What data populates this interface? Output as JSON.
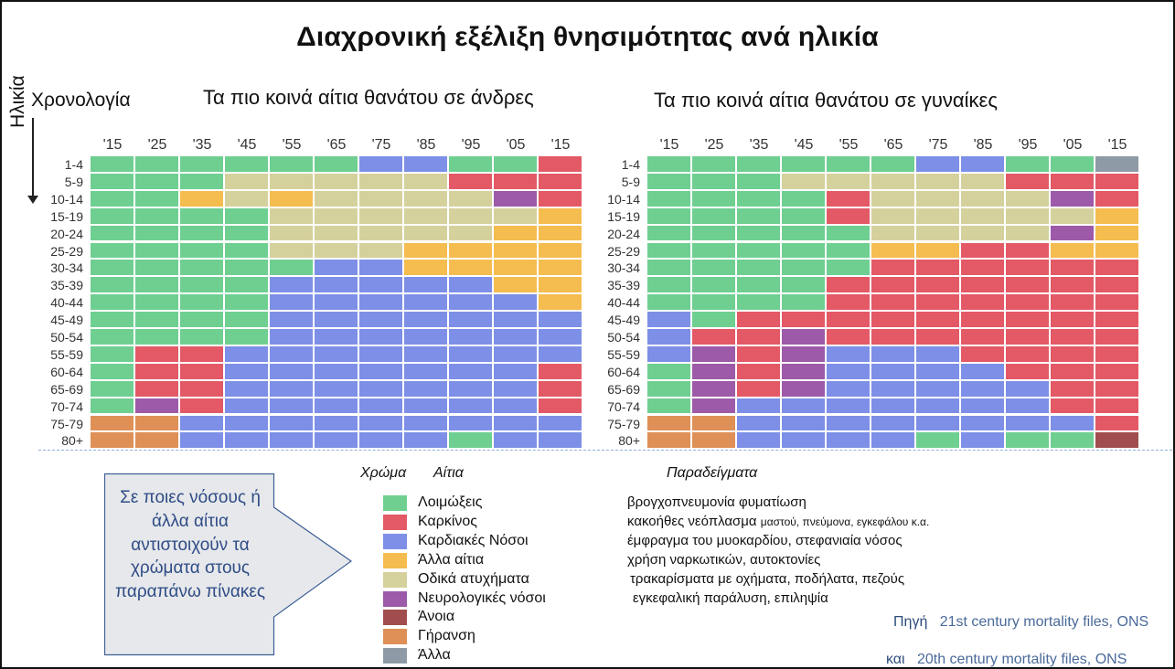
{
  "title": "Διαχρονική εξέλιξη θνησιμότητας ανά ηλικία",
  "axis": {
    "chronology": "Χρονολογία",
    "age": "Ηλικία"
  },
  "colors": {
    "L": "#6ecf91",
    "K": "#e35966",
    "H": "#7d8fe6",
    "A": "#f5bc4f",
    "O": "#d5d19c",
    "N": "#9d5aa8",
    "D": "#a24d4d",
    "G": "#df9057",
    "X": "#8e9ba6"
  },
  "chart_data": [
    {
      "type": "heatmap",
      "title": "Τα πιο κοινά αίτια θανάτου σε άνδρες",
      "xlabel": "Χρονολογία",
      "ylabel": "Ηλικία",
      "x": [
        "'15",
        "'25",
        "'35",
        "'45",
        "'55",
        "'65",
        "'75",
        "'85",
        "'95",
        "'05",
        "'15"
      ],
      "y": [
        "1-4",
        "5-9",
        "10-14",
        "15-19",
        "20-24",
        "25-29",
        "30-34",
        "35-39",
        "40-44",
        "45-49",
        "50-54",
        "55-59",
        "60-64",
        "65-69",
        "70-74",
        "75-79",
        "80+"
      ],
      "rows": [
        "LLLLLLHHLLK",
        "LLLOOOOOKKK",
        "LLAOAOOOONK",
        "LLLLOOOOOOA",
        "LLLLOOOOOAA",
        "LLLLOOOAAAA",
        "LLLLLHHAAAA",
        "LLLLHHHHHAA",
        "LLLLHHHHHHA",
        "LLLLHHHHHHH",
        "LLLLHHHHHHH",
        "LKKHHHHHHHH",
        "LKKHHHHHHHK",
        "LKKHHHHHHHK",
        "LNKHHHHHHHK",
        "GGHHHHHHHHH",
        "GGHHHHHHLHH"
      ]
    },
    {
      "type": "heatmap",
      "title": "Τα πιο κοινά αίτια θανάτου σε γυναίκες",
      "xlabel": "Χρονολογία",
      "ylabel": "Ηλικία",
      "x": [
        "'15",
        "'25",
        "'35",
        "'45",
        "'55",
        "'65",
        "'75",
        "'85",
        "'95",
        "'05",
        "'15"
      ],
      "y": [
        "1-4",
        "5-9",
        "10-14",
        "15-19",
        "20-24",
        "25-29",
        "30-34",
        "35-39",
        "40-44",
        "45-49",
        "50-54",
        "55-59",
        "60-64",
        "65-69",
        "70-74",
        "75-79",
        "80+"
      ],
      "rows": [
        "LLLLLLHHLLX",
        "LLLOOOOOKKK",
        "LLLLKOOOONK",
        "LLLLKOOOOOA",
        "LLLLLOOOONA",
        "LLLLLAAKKAA",
        "LLLLLKKKKKK",
        "LLLLKKKKKKK",
        "LLLLKKKKKKK",
        "HLKKKKKKKKK",
        "HKKNKKKKKKK",
        "HNKNHHHKKKK",
        "LNKNHHHHKKK",
        "LNKNHHHHHKK",
        "LNHHHHHHHKK",
        "GGHHHHHHHHK",
        "GGHHHHLHLLD"
      ]
    }
  ],
  "callout": "Σε ποιες νόσους ή άλλα αίτια αντιστοιχούν τα χρώματα στους παραπάνω πίνακες",
  "legend": {
    "head_color": "Χρώμα",
    "head_cause": "Αίτια",
    "head_examples": "Παραδείγματα",
    "items": [
      {
        "code": "L",
        "label": "Λοιμώξεις",
        "example": "βρογχοπνευμονία φυματίωση",
        "example_small": ""
      },
      {
        "code": "K",
        "label": "Καρκίνος",
        "example": "κακοήθες νεόπλασμα",
        "example_small": "μαστού, πνεύμονα, εγκεφάλου κ.α."
      },
      {
        "code": "H",
        "label": "Καρδιακές Νόσοι",
        "example": "έμφραγμα του μυοκαρδίου, στεφανιαία νόσος",
        "example_small": ""
      },
      {
        "code": "A",
        "label": "Άλλα αίτια",
        "example": "χρήση ναρκωτικών, αυτοκτονίες",
        "example_small": ""
      },
      {
        "code": "O",
        "label": "Οδικά ατυχήματα",
        "example": "τρακαρίσματα με οχήματα, ποδήλατα, πεζούς",
        "example_small": ""
      },
      {
        "code": "N",
        "label": "Νευρολογικές νόσοι",
        "example": "εγκεφαλική παράλυση, επιληψία",
        "example_small": ""
      },
      {
        "code": "D",
        "label": "Άνοια",
        "example": "",
        "example_small": ""
      },
      {
        "code": "G",
        "label": "Γήρανση",
        "example": "",
        "example_small": ""
      },
      {
        "code": "X",
        "label": "Άλλα",
        "example": "",
        "example_small": ""
      }
    ]
  },
  "source": {
    "label1": "Πηγή",
    "text1": "21st century mortality files, ONS",
    "label2": "και",
    "text2": "20th century mortality files, ONS"
  }
}
